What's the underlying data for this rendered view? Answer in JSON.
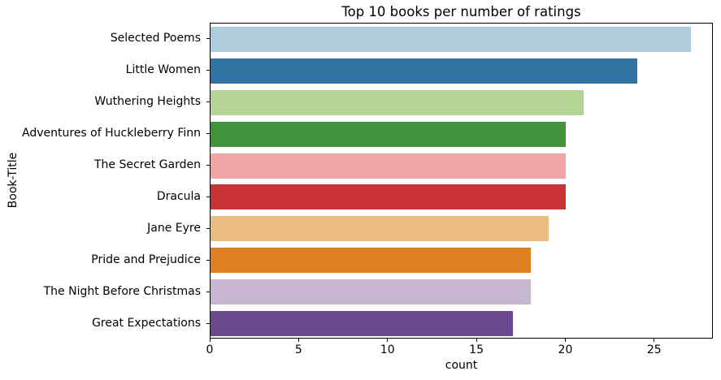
{
  "figure": {
    "background": "#ffffff",
    "spine_color": "#000000"
  },
  "chart_data": {
    "type": "bar",
    "orientation": "horizontal",
    "title": "Top 10 books per number of ratings",
    "xlabel": "count",
    "ylabel": "Book-Title",
    "categories": [
      "Selected Poems",
      "Little Women",
      "Wuthering Heights",
      "Adventures of Huckleberry Finn",
      "The Secret Garden",
      "Dracula",
      "Jane Eyre",
      "Pride and Prejudice",
      "The Night Before Christmas",
      "Great Expectations"
    ],
    "values": [
      27,
      24,
      21,
      20,
      20,
      20,
      19,
      18,
      18,
      17
    ],
    "bar_colors": [
      "#aeccdb",
      "#3274a1",
      "#b3d495",
      "#40923b",
      "#efa6a5",
      "#ca3335",
      "#ebbd81",
      "#df7f20",
      "#c9b7d2",
      "#6a498e"
    ],
    "xticks": [
      0,
      5,
      10,
      15,
      20,
      25
    ],
    "xlim": [
      0,
      28.3
    ],
    "grid": false,
    "legend": null
  }
}
